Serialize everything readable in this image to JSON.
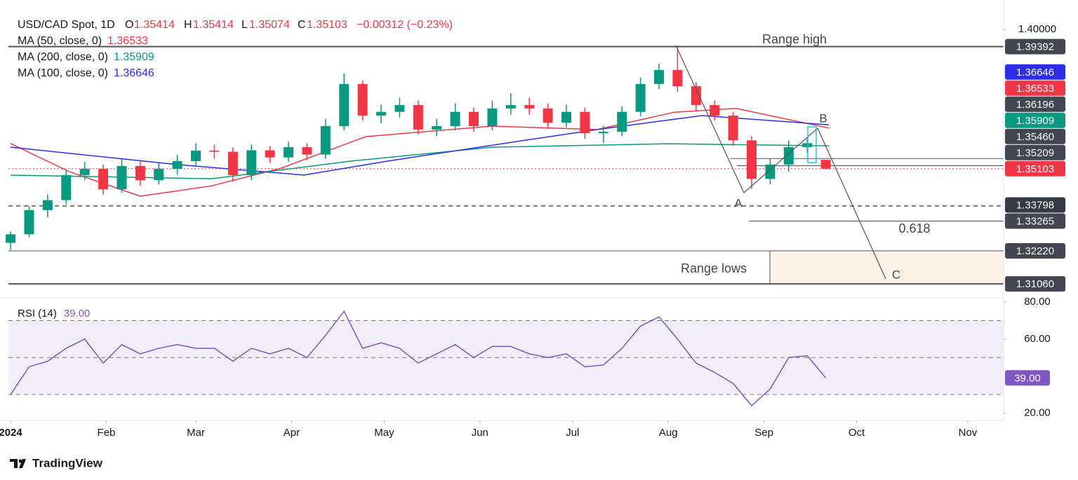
{
  "chart_data": {
    "type": "candlestick",
    "header": {
      "symbol": "USD/CAD Spot, 1D",
      "o": "O",
      "open": "1.35414",
      "h": "H",
      "high": "1.35414",
      "l": "L",
      "low": "1.35074",
      "c": "C",
      "close": "1.35103",
      "change": "−0.00312 (−0.23%)"
    },
    "xlim": [
      -0.7,
      321.6
    ],
    "xticks": [
      {
        "value": 0,
        "label": "2024"
      },
      {
        "value": 31,
        "label": "Feb"
      },
      {
        "value": 60,
        "label": "Mar"
      },
      {
        "value": 91,
        "label": "Apr"
      },
      {
        "value": 121,
        "label": "May"
      },
      {
        "value": 152,
        "label": "Jun"
      },
      {
        "value": 182,
        "label": "Jul"
      },
      {
        "value": 213,
        "label": "Aug"
      },
      {
        "value": 244,
        "label": "Sep"
      },
      {
        "value": 274,
        "label": "Oct"
      },
      {
        "value": 310,
        "label": "Nov"
      }
    ],
    "ylim": [
      1.3057,
      1.4066
    ],
    "yticks": [
      {
        "value": 1.4,
        "label": "1.40000"
      }
    ],
    "x": [
      0,
      6,
      12,
      18,
      24,
      30,
      36,
      42,
      48,
      54,
      60,
      66,
      72,
      78,
      84,
      90,
      96,
      102,
      108,
      114,
      120,
      126,
      132,
      138,
      144,
      150,
      156,
      162,
      168,
      174,
      180,
      186,
      192,
      198,
      204,
      210,
      216,
      222,
      228,
      234,
      240,
      246,
      252,
      258,
      264
    ],
    "up_color": "#089981",
    "down_color": "#f23645",
    "candles": [
      [
        1.325,
        1.329,
        1.3225,
        1.328
      ],
      [
        1.328,
        1.338,
        1.327,
        1.3365
      ],
      [
        1.3365,
        1.342,
        1.334,
        1.34
      ],
      [
        1.34,
        1.3505,
        1.3385,
        1.3488
      ],
      [
        1.3488,
        1.3535,
        1.347,
        1.351
      ],
      [
        1.351,
        1.3525,
        1.342,
        1.3438
      ],
      [
        1.3438,
        1.3545,
        1.3425,
        1.352
      ],
      [
        1.352,
        1.354,
        1.345,
        1.347
      ],
      [
        1.347,
        1.353,
        1.3455,
        1.351
      ],
      [
        1.351,
        1.356,
        1.349,
        1.3537
      ],
      [
        1.3537,
        1.36,
        1.352,
        1.3574
      ],
      [
        1.3574,
        1.3595,
        1.3545,
        1.357
      ],
      [
        1.357,
        1.3585,
        1.3465,
        1.3488
      ],
      [
        1.3488,
        1.3595,
        1.347,
        1.3575
      ],
      [
        1.3575,
        1.359,
        1.353,
        1.355
      ],
      [
        1.355,
        1.3605,
        1.3535,
        1.3586
      ],
      [
        1.3586,
        1.36,
        1.354,
        1.356
      ],
      [
        1.356,
        1.3685,
        1.3545,
        1.366
      ],
      [
        1.366,
        1.3845,
        1.3645,
        1.3808
      ],
      [
        1.3808,
        1.382,
        1.368,
        1.3697
      ],
      [
        1.3697,
        1.3735,
        1.367,
        1.371
      ],
      [
        1.371,
        1.376,
        1.369,
        1.3734
      ],
      [
        1.3734,
        1.375,
        1.363,
        1.3648
      ],
      [
        1.3648,
        1.3685,
        1.3625,
        1.366
      ],
      [
        1.366,
        1.374,
        1.3645,
        1.371
      ],
      [
        1.371,
        1.3725,
        1.364,
        1.366
      ],
      [
        1.366,
        1.375,
        1.3645,
        1.3722
      ],
      [
        1.3722,
        1.3775,
        1.37,
        1.3734
      ],
      [
        1.3734,
        1.376,
        1.37,
        1.3722
      ],
      [
        1.3722,
        1.374,
        1.365,
        1.3672
      ],
      [
        1.3672,
        1.3735,
        1.3655,
        1.371
      ],
      [
        1.371,
        1.3725,
        1.3615,
        1.3635
      ],
      [
        1.3635,
        1.366,
        1.36,
        1.364
      ],
      [
        1.364,
        1.373,
        1.3625,
        1.371
      ],
      [
        1.371,
        1.383,
        1.3695,
        1.3808
      ],
      [
        1.3808,
        1.388,
        1.379,
        1.3857
      ],
      [
        1.3857,
        1.3943,
        1.378,
        1.38
      ],
      [
        1.38,
        1.3815,
        1.3715,
        1.3734
      ],
      [
        1.3734,
        1.375,
        1.368,
        1.3697
      ],
      [
        1.3697,
        1.371,
        1.359,
        1.361
      ],
      [
        1.361,
        1.3625,
        1.344,
        1.3475
      ],
      [
        1.3475,
        1.3545,
        1.3455,
        1.3525
      ],
      [
        1.3525,
        1.361,
        1.35,
        1.3586
      ],
      [
        1.3586,
        1.362,
        1.3565,
        1.36
      ],
      [
        1.35414,
        1.35414,
        1.35074,
        1.35103
      ]
    ],
    "series": [
      {
        "name": "MA (50, close, 0)",
        "value_label": "1.36533",
        "color": "#f23645",
        "x": [
          0,
          19,
          42,
          65,
          87.5,
          115,
          156,
          190,
          215,
          235,
          265
        ],
        "values": [
          1.3599,
          1.35,
          1.3414,
          1.345,
          1.3512,
          1.3623,
          1.366,
          1.3648,
          1.3709,
          1.3722,
          1.36533
        ]
      },
      {
        "name": "MA (200, close, 0)",
        "value_label": "1.35909",
        "color": "#089981",
        "x": [
          0,
          65,
          110,
          156,
          213,
          265
        ],
        "values": [
          1.3488,
          1.3475,
          1.3537,
          1.3586,
          1.3598,
          1.35909
        ]
      },
      {
        "name": "MA (100, close, 0)",
        "value_label": "1.36646",
        "color": "#2d2de6",
        "x": [
          0,
          54,
          95,
          122,
          167,
          190,
          224,
          265
        ],
        "values": [
          1.3586,
          1.3525,
          1.3488,
          1.3537,
          1.3611,
          1.3648,
          1.3697,
          1.36646
        ]
      }
    ],
    "price_labels": [
      {
        "value": 1.39392,
        "label": "1.39392",
        "color": "#434651"
      },
      {
        "value": 1.36646,
        "label": "1.36646",
        "color": "#2d2de6"
      },
      {
        "value": 1.36533,
        "label": "1.36533",
        "color": "#f23645"
      },
      {
        "value": 1.36196,
        "label": "1.36196",
        "color": "#434651"
      },
      {
        "value": 1.35909,
        "label": "1.35909",
        "color": "#089981"
      },
      {
        "value": 1.3546,
        "label": "1.35460",
        "color": "#434651"
      },
      {
        "value": 1.35209,
        "label": "1.35209",
        "color": "#434651"
      },
      {
        "value": 1.35103,
        "label": "1.35103",
        "color": "#f23645"
      },
      {
        "value": 1.33798,
        "label": "1.33798",
        "color": "#363a45"
      },
      {
        "value": 1.33265,
        "label": "1.33265",
        "color": "#434651"
      },
      {
        "value": 1.3222,
        "label": "1.32220",
        "color": "#434651"
      },
      {
        "value": 1.3106,
        "label": "1.31060",
        "color": "#434651"
      }
    ],
    "annotations": {
      "range_high": "Range high",
      "range_lows": "Range lows",
      "fib": "0.618",
      "a": "A",
      "b": "B",
      "c": "C"
    },
    "rsi": {
      "name": "RSI (14)",
      "color": "#7e57c2",
      "last": {
        "value": 39,
        "label": "39.00"
      },
      "values": [
        30,
        45,
        48,
        55,
        60,
        47,
        57,
        52,
        55,
        57,
        55,
        55,
        48,
        55,
        52,
        55,
        50,
        62,
        75,
        55,
        58,
        55,
        47,
        52,
        57,
        50,
        56,
        56,
        52,
        50,
        52,
        45,
        46,
        55,
        67,
        72,
        60,
        47,
        42,
        36,
        24,
        33,
        50,
        51,
        39
      ],
      "ylim": [
        16,
        82.3
      ],
      "yticks": [
        {
          "value": 80,
          "label": "80.00"
        },
        {
          "value": 60,
          "label": "60.00"
        },
        {
          "value": 20,
          "label": "20.00"
        }
      ],
      "bands": [
        70,
        50,
        30
      ]
    },
    "brand": "TradingView"
  }
}
